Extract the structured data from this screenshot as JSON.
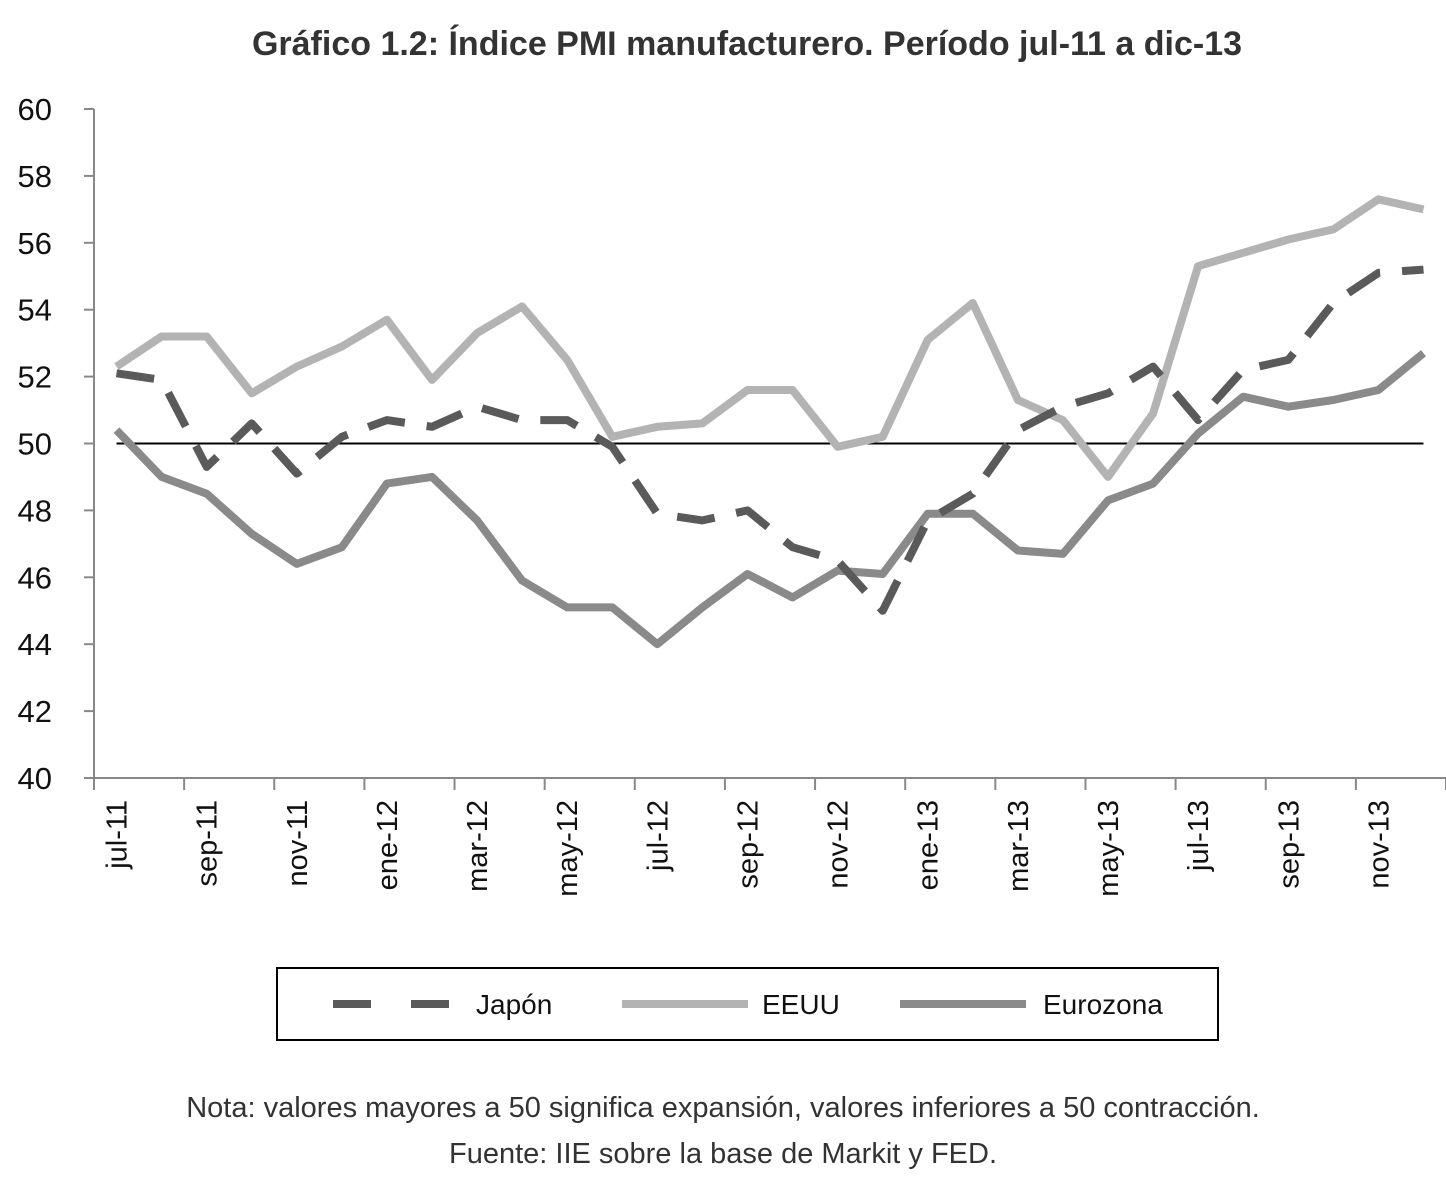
{
  "chart_data": {
    "type": "line",
    "title": "Gráfico 1.2: Índice PMI manufacturero. Período jul-11 a dic-13",
    "ylim": [
      40,
      60
    ],
    "yticks": [
      "40",
      "42",
      "44",
      "46",
      "48",
      "50",
      "52",
      "54",
      "56",
      "58",
      "60"
    ],
    "reference_line": 50,
    "categories": [
      "jul-11",
      "ago-11",
      "sep-11",
      "oct-11",
      "nov-11",
      "dic-11",
      "ene-12",
      "feb-12",
      "mar-12",
      "abr-12",
      "may-12",
      "jun-12",
      "jul-12",
      "ago-12",
      "sep-12",
      "oct-12",
      "nov-12",
      "dic-12",
      "ene-13",
      "feb-13",
      "mar-13",
      "abr-13",
      "may-13",
      "jun-13",
      "jul-13",
      "ago-13",
      "sep-13",
      "oct-13",
      "nov-13",
      "dic-13"
    ],
    "xtick_labels": [
      "jul-11",
      "sep-11",
      "nov-11",
      "ene-12",
      "mar-12",
      "may-12",
      "jul-12",
      "sep-12",
      "nov-12",
      "ene-13",
      "mar-13",
      "may-13",
      "jul-13",
      "sep-13",
      "nov-13"
    ],
    "legend_position": "bottom",
    "grid": false,
    "series": [
      {
        "name": "Japón",
        "style": "dashed",
        "color": "#5a5a5a",
        "values": [
          52.1,
          51.9,
          49.3,
          50.6,
          49.1,
          50.2,
          50.7,
          50.5,
          51.1,
          50.7,
          50.7,
          49.9,
          47.9,
          47.7,
          48.0,
          46.9,
          46.5,
          45.0,
          47.7,
          48.5,
          50.4,
          51.1,
          51.5,
          52.3,
          50.7,
          52.2,
          52.5,
          54.2,
          55.1,
          55.2
        ]
      },
      {
        "name": "EEUU",
        "style": "solid",
        "color": "#b3b3b3",
        "values": [
          52.3,
          53.2,
          53.2,
          51.5,
          52.3,
          52.9,
          53.7,
          51.9,
          53.3,
          54.1,
          52.5,
          50.2,
          50.5,
          50.6,
          51.6,
          51.6,
          49.9,
          50.2,
          53.1,
          54.2,
          51.3,
          50.7,
          49.0,
          50.9,
          55.3,
          55.7,
          56.1,
          56.4,
          57.3,
          57.0
        ]
      },
      {
        "name": "Eurozona",
        "style": "solid",
        "color": "#8a8a8a",
        "values": [
          50.4,
          49.0,
          48.5,
          47.3,
          46.4,
          46.9,
          48.8,
          49.0,
          47.7,
          45.9,
          45.1,
          45.1,
          44.0,
          45.1,
          46.1,
          45.4,
          46.2,
          46.1,
          47.9,
          47.9,
          46.8,
          46.7,
          48.3,
          48.8,
          50.3,
          51.4,
          51.1,
          51.3,
          51.6,
          52.7
        ]
      }
    ]
  },
  "footer": {
    "note": "Nota: valores mayores a 50 significa expansión, valores inferiores a 50 contracción.",
    "source": "Fuente: IIE sobre la base de Markit y FED."
  }
}
